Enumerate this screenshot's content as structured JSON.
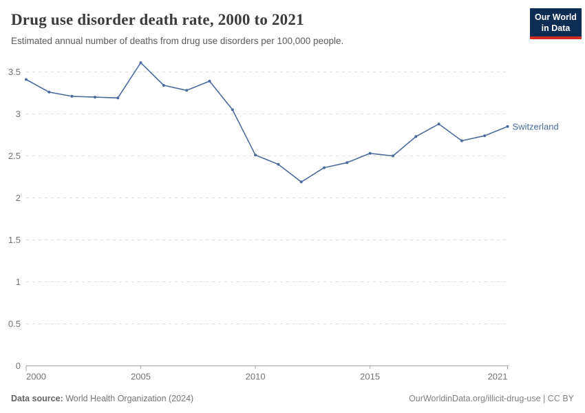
{
  "logo": {
    "line1": "Our World",
    "line2": "in Data"
  },
  "colors": {
    "line": "#4C6A9C",
    "logo_bg": "#0d2d52",
    "logo_accent": "#d42b21",
    "grid": "#dcdcdc",
    "axis": "#a5a5a5",
    "tick_label": "#737373"
  },
  "footer": {
    "source_label": "Data source:",
    "source_value": " World Health Organization (2024)",
    "link": "OurWorldinData.org/illicit-drug-use",
    "license_suffix": " | CC BY"
  },
  "chart_data": {
    "type": "line",
    "title": "Drug use disorder death rate, 2000 to 2021",
    "subtitle": "Estimated annual number of deaths from drug use disorders per 100,000 people.",
    "x": [
      2000,
      2001,
      2002,
      2003,
      2004,
      2005,
      2006,
      2007,
      2008,
      2009,
      2010,
      2011,
      2012,
      2013,
      2014,
      2015,
      2016,
      2017,
      2018,
      2019,
      2020,
      2021
    ],
    "series": [
      {
        "name": "Switzerland",
        "color": "#4C6A9C",
        "values": [
          3.41,
          3.26,
          3.21,
          3.2,
          3.19,
          3.61,
          3.34,
          3.28,
          3.39,
          3.05,
          2.51,
          2.4,
          2.19,
          2.36,
          2.42,
          2.53,
          2.5,
          2.73,
          2.88,
          2.68,
          2.74,
          2.85
        ]
      }
    ],
    "xlim": [
      2000,
      2021
    ],
    "ylim": [
      0,
      3.5
    ],
    "yticks": [
      0,
      0.5,
      1,
      1.5,
      2,
      2.5,
      3,
      3.5
    ],
    "xticks": [
      2000,
      2005,
      2010,
      2015,
      2021
    ],
    "grid": "horizontal-dashed",
    "legend_position": "end-of-line-label"
  }
}
